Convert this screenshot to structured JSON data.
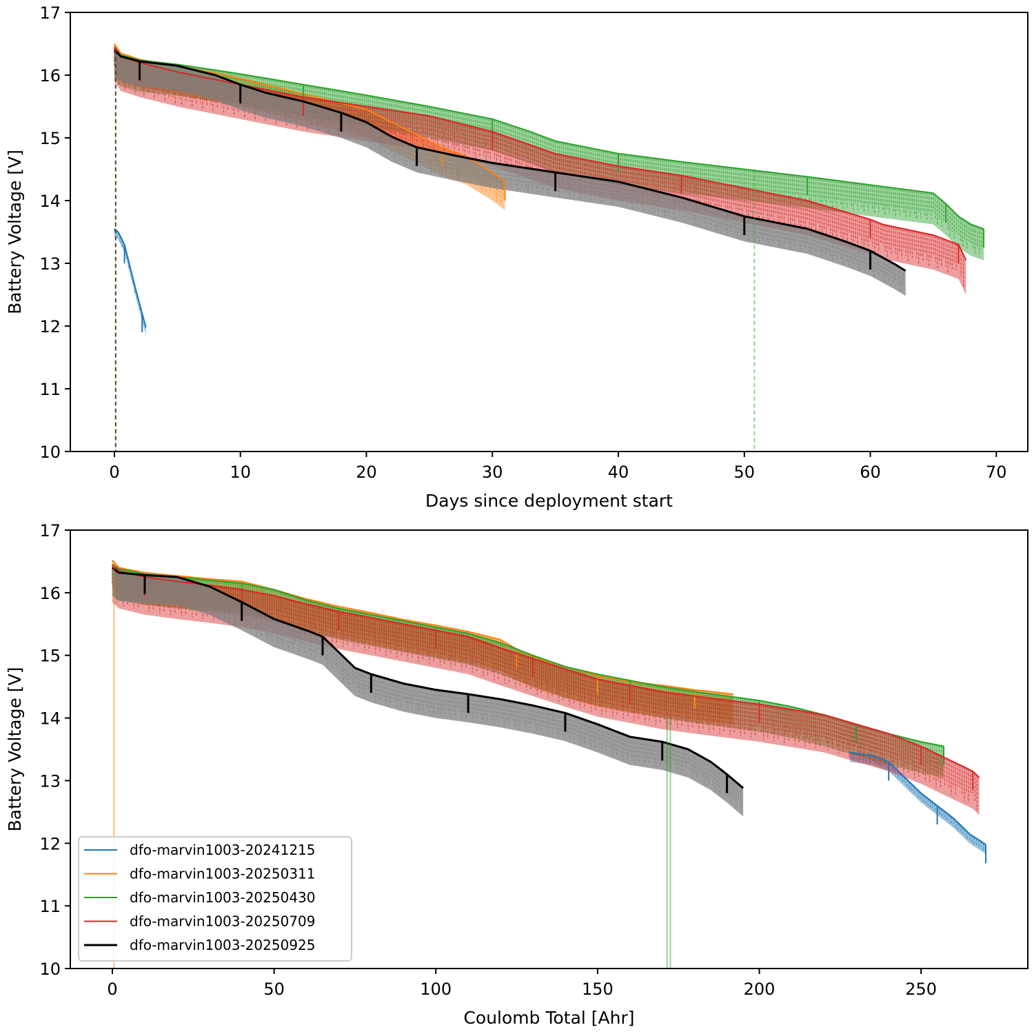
{
  "chart_data": [
    {
      "type": "line",
      "title": "",
      "xlabel": "Days since deployment start",
      "ylabel": "Battery Voltage [V]",
      "xlim": [
        -3.5,
        72.5
      ],
      "ylim": [
        10,
        17
      ],
      "xticks": [
        0,
        10,
        20,
        30,
        40,
        50,
        60,
        70
      ],
      "yticks": [
        10,
        11,
        12,
        13,
        14,
        15,
        16,
        17
      ],
      "grid": false,
      "series": [
        {
          "name": "dfo-marvin1003-20241215",
          "color": "#1f77b4",
          "x": [
            0,
            0.3,
            0.8,
            1.3,
            1.8,
            2.2,
            2.5
          ],
          "y": [
            13.55,
            13.5,
            13.3,
            12.9,
            12.5,
            12.2,
            11.98
          ],
          "band_low": 0.12
        },
        {
          "name": "dfo-marvin1003-20250311",
          "color": "#ff7f0e",
          "x": [
            0,
            0.5,
            2,
            5,
            10,
            15,
            20,
            23,
            26,
            28,
            30,
            31
          ],
          "y": [
            16.5,
            16.35,
            16.25,
            16.15,
            15.95,
            15.7,
            15.45,
            15.15,
            14.85,
            14.7,
            14.45,
            14.3
          ],
          "band_low": 0.45
        },
        {
          "name": "dfo-marvin1003-20250430",
          "color": "#2ca02c",
          "x": [
            0,
            0.5,
            2,
            5,
            10,
            15,
            20,
            25,
            30,
            33,
            35,
            40,
            45,
            50,
            55,
            60,
            65,
            66,
            67,
            68,
            69
          ],
          "y": [
            16.45,
            16.32,
            16.24,
            16.17,
            16.02,
            15.85,
            15.68,
            15.5,
            15.3,
            15.1,
            14.95,
            14.75,
            14.62,
            14.5,
            14.38,
            14.25,
            14.12,
            13.95,
            13.75,
            13.62,
            13.55
          ],
          "band_low": 0.5
        },
        {
          "name": "dfo-marvin1003-20250709",
          "color": "#d62728",
          "x": [
            0,
            0.5,
            2,
            5,
            10,
            15,
            20,
            25,
            30,
            35,
            40,
            45,
            50,
            55,
            60,
            61,
            65,
            67,
            67.6
          ],
          "y": [
            16.45,
            16.3,
            16.2,
            16.05,
            15.85,
            15.65,
            15.5,
            15.35,
            15.1,
            14.75,
            14.55,
            14.4,
            14.2,
            14.0,
            13.7,
            13.62,
            13.45,
            13.3,
            13.05
          ],
          "band_low": 0.55
        },
        {
          "name": "dfo-marvin1003-20250925",
          "color": "#000000",
          "x": [
            0,
            0.5,
            2,
            5,
            8,
            10,
            12,
            15,
            18,
            20,
            22,
            24,
            27,
            30,
            35,
            40,
            45,
            50,
            55,
            58,
            60,
            62,
            62.8
          ],
          "y": [
            16.4,
            16.3,
            16.22,
            16.15,
            16.0,
            15.85,
            15.72,
            15.58,
            15.4,
            15.25,
            15.02,
            14.85,
            14.72,
            14.6,
            14.45,
            14.3,
            14.05,
            13.75,
            13.55,
            13.35,
            13.2,
            12.98,
            12.88
          ],
          "band_low": 0.4
        }
      ]
    },
    {
      "type": "line",
      "title": "",
      "xlabel": "Coulomb Total [Ahr]",
      "ylabel": "Battery Voltage [V]",
      "xlim": [
        -13,
        283
      ],
      "ylim": [
        10,
        17
      ],
      "xticks": [
        0,
        50,
        100,
        150,
        200,
        250
      ],
      "yticks": [
        10,
        11,
        12,
        13,
        14,
        15,
        16,
        17
      ],
      "grid": false,
      "legend": "lower-left",
      "series": [
        {
          "name": "dfo-marvin1003-20241215",
          "color": "#1f77b4",
          "x": [
            228,
            235,
            240,
            245,
            250,
            255,
            260,
            265,
            270
          ],
          "y": [
            13.45,
            13.4,
            13.3,
            13.05,
            12.8,
            12.6,
            12.4,
            12.15,
            11.98
          ],
          "band_low": 0.15
        },
        {
          "name": "dfo-marvin1003-20250311",
          "color": "#ff7f0e",
          "x": [
            0,
            2,
            10,
            20,
            30,
            40,
            50,
            60,
            70,
            80,
            90,
            100,
            110,
            120,
            125,
            130,
            140,
            150,
            160,
            170,
            180,
            192
          ],
          "y": [
            16.52,
            16.4,
            16.32,
            16.27,
            16.22,
            16.18,
            16.05,
            15.9,
            15.78,
            15.68,
            15.57,
            15.48,
            15.38,
            15.25,
            15.1,
            14.98,
            14.82,
            14.68,
            14.58,
            14.52,
            14.45,
            14.38
          ],
          "band_low": 0.5
        },
        {
          "name": "dfo-marvin1003-20250430",
          "color": "#2ca02c",
          "x": [
            0,
            2,
            10,
            20,
            30,
            40,
            50,
            60,
            70,
            80,
            90,
            100,
            110,
            120,
            130,
            140,
            150,
            160,
            170,
            180,
            200,
            210,
            220,
            230,
            240,
            250,
            257
          ],
          "y": [
            16.45,
            16.38,
            16.3,
            16.25,
            16.2,
            16.15,
            16.05,
            15.88,
            15.75,
            15.65,
            15.55,
            15.45,
            15.35,
            15.2,
            15.0,
            14.82,
            14.7,
            14.6,
            14.5,
            14.42,
            14.28,
            14.18,
            14.05,
            13.9,
            13.75,
            13.62,
            13.55
          ],
          "band_low": 0.5
        },
        {
          "name": "dfo-marvin1003-20250709",
          "color": "#d62728",
          "x": [
            0,
            2,
            10,
            20,
            30,
            40,
            50,
            60,
            70,
            80,
            90,
            100,
            110,
            120,
            130,
            140,
            150,
            160,
            170,
            180,
            200,
            220,
            240,
            250,
            258,
            262,
            266,
            268
          ],
          "y": [
            16.45,
            16.35,
            16.25,
            16.18,
            16.12,
            16.05,
            15.95,
            15.82,
            15.7,
            15.6,
            15.5,
            15.4,
            15.3,
            15.12,
            14.95,
            14.78,
            14.62,
            14.52,
            14.42,
            14.35,
            14.22,
            14.05,
            13.75,
            13.55,
            13.35,
            13.25,
            13.15,
            13.05
          ],
          "band_low": 0.6
        },
        {
          "name": "dfo-marvin1003-20250925",
          "color": "#000000",
          "x": [
            0,
            2,
            10,
            20,
            30,
            40,
            50,
            60,
            65,
            70,
            75,
            80,
            90,
            100,
            110,
            120,
            130,
            140,
            150,
            160,
            170,
            178,
            185,
            190,
            195
          ],
          "y": [
            16.4,
            16.32,
            16.28,
            16.25,
            16.1,
            15.85,
            15.58,
            15.4,
            15.3,
            15.05,
            14.8,
            14.7,
            14.55,
            14.45,
            14.38,
            14.3,
            14.2,
            14.08,
            13.9,
            13.7,
            13.62,
            13.5,
            13.3,
            13.1,
            12.88
          ],
          "band_low": 0.45
        }
      ]
    }
  ],
  "legend": {
    "entries": [
      {
        "label": "dfo-marvin1003-20241215",
        "color": "#1f77b4"
      },
      {
        "label": "dfo-marvin1003-20250311",
        "color": "#ff7f0e"
      },
      {
        "label": "dfo-marvin1003-20250430",
        "color": "#2ca02c"
      },
      {
        "label": "dfo-marvin1003-20250709",
        "color": "#d62728"
      },
      {
        "label": "dfo-marvin1003-20250925",
        "color": "#000000"
      }
    ]
  }
}
